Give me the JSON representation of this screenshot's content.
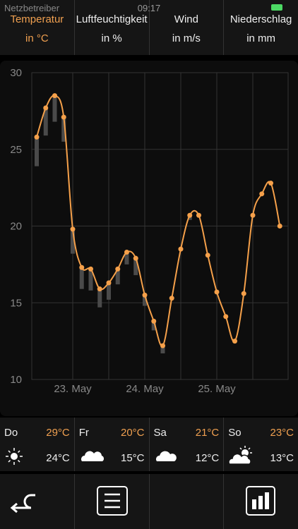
{
  "status": {
    "carrier": "Netzbetreiber",
    "time": "09:17"
  },
  "tabs": [
    {
      "label": "Temperatur",
      "unit": "in °C"
    },
    {
      "label": "Luftfeuchtigkeit",
      "unit": "in %"
    },
    {
      "label": "Wind",
      "unit": "in m/s"
    },
    {
      "label": "Niederschlag",
      "unit": "in mm"
    }
  ],
  "chart_data": {
    "type": "line",
    "categories": [
      null,
      null,
      null,
      null,
      "23. May",
      null,
      null,
      null,
      null,
      null,
      null,
      null,
      "24. May",
      null,
      null,
      null,
      null,
      null,
      null,
      null,
      "25. May",
      null,
      null,
      null,
      null,
      null,
      null,
      null
    ],
    "values": [
      25.8,
      27.7,
      28.5,
      27.1,
      19.8,
      17.3,
      17.2,
      15.9,
      16.3,
      17.2,
      18.3,
      17.9,
      15.5,
      13.8,
      12.2,
      15.3,
      18.5,
      20.7,
      20.7,
      18.1,
      15.7,
      14.1,
      12.5,
      15.6,
      20.7,
      22.1,
      22.8,
      20.0
    ],
    "lows": [
      23.9,
      25.9,
      26.8,
      25.5,
      18.2,
      15.9,
      15.8,
      14.7,
      15.2,
      16.2,
      17.5,
      16.8,
      14.8,
      13.2,
      11.7,
      null,
      null,
      20.4,
      null,
      null,
      null,
      null,
      null,
      null,
      null,
      null,
      null,
      null
    ],
    "color": "#f5a04a",
    "low_color": "#4a4a4a",
    "ylim": [
      10,
      30
    ],
    "yticks": [
      10,
      15,
      20,
      25,
      30
    ],
    "grid": true
  },
  "days": [
    {
      "day": "Do",
      "max": "29°C",
      "min": "24°C"
    },
    {
      "day": "Fr",
      "max": "20°C",
      "min": "15°C"
    },
    {
      "day": "Sa",
      "max": "21°C",
      "min": "12°C"
    },
    {
      "day": "So",
      "max": "23°C",
      "min": "13°C"
    }
  ]
}
